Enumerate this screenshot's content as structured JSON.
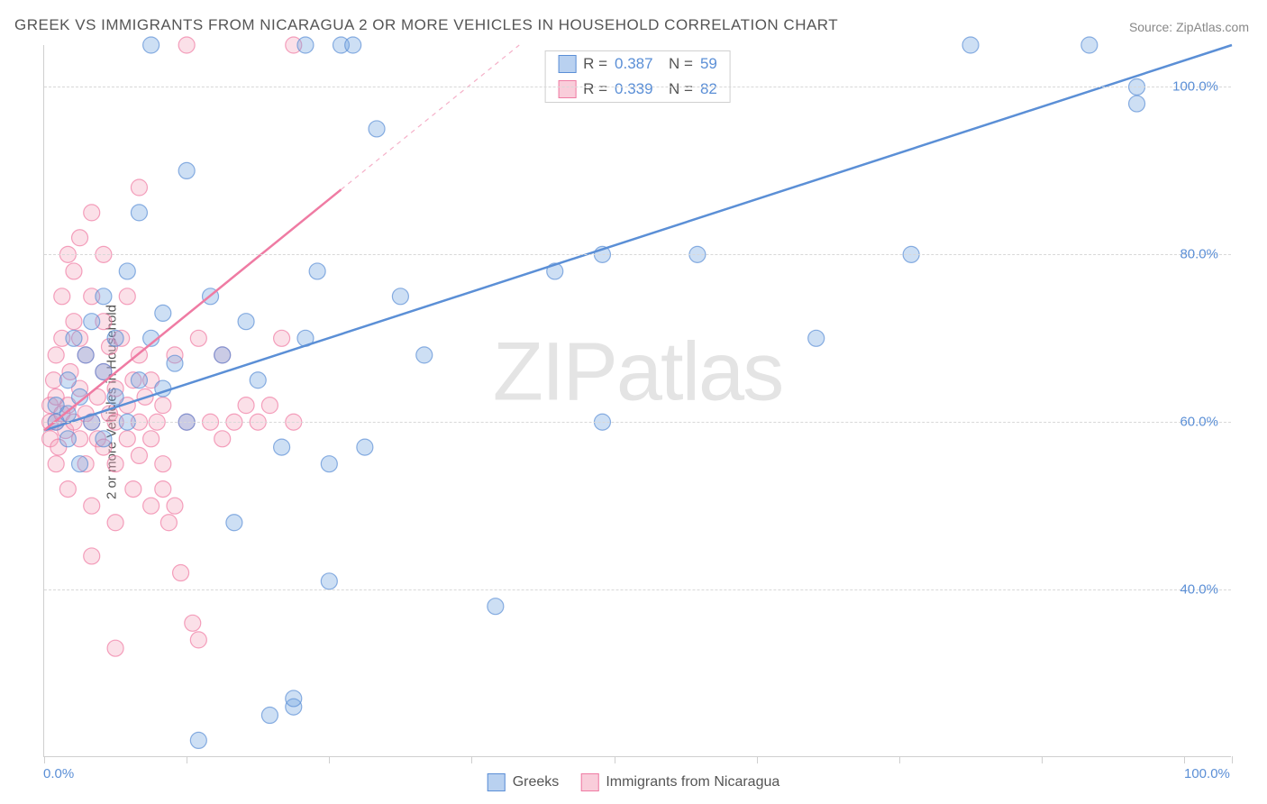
{
  "title": "GREEK VS IMMIGRANTS FROM NICARAGUA 2 OR MORE VEHICLES IN HOUSEHOLD CORRELATION CHART",
  "source": "Source: ZipAtlas.com",
  "y_axis_label": "2 or more Vehicles in Household",
  "watermark_zip": "ZIP",
  "watermark_atlas": "atlas",
  "chart": {
    "type": "scatter",
    "background_color": "#ffffff",
    "grid_color": "#d8d8d8",
    "axis_color": "#cfcfcf",
    "tick_label_color": "#5b8fd6",
    "text_color": "#555555",
    "title_fontsize": 17,
    "label_fontsize": 15,
    "marker_radius": 9,
    "marker_fill_opacity": 0.35,
    "line_width": 2.5,
    "xlim": [
      0,
      100
    ],
    "ylim": [
      20,
      105
    ],
    "y_ticks": [
      40,
      60,
      80,
      100
    ],
    "y_tick_labels": [
      "40.0%",
      "60.0%",
      "80.0%",
      "100.0%"
    ],
    "x_ticks": [
      0,
      12,
      24,
      36,
      48,
      60,
      72,
      84,
      96,
      100
    ],
    "x_tick_labels": {
      "0": "0.0%",
      "100": "100.0%"
    },
    "series": [
      {
        "name": "Greeks",
        "color": "#6fa3e0",
        "stroke": "#5b8fd6",
        "r_value": "0.387",
        "n_value": "59",
        "regression": {
          "x1": 0,
          "y1": 59,
          "x2": 100,
          "y2": 105,
          "solid_until_x": 100
        },
        "points": [
          [
            1,
            60
          ],
          [
            1,
            62
          ],
          [
            2,
            58
          ],
          [
            2,
            65
          ],
          [
            2,
            61
          ],
          [
            2.5,
            70
          ],
          [
            3,
            63
          ],
          [
            3,
            55
          ],
          [
            3.5,
            68
          ],
          [
            4,
            60
          ],
          [
            4,
            72
          ],
          [
            5,
            66
          ],
          [
            5,
            75
          ],
          [
            5,
            58
          ],
          [
            6,
            70
          ],
          [
            6,
            63
          ],
          [
            7,
            78
          ],
          [
            7,
            60
          ],
          [
            8,
            65
          ],
          [
            8,
            85
          ],
          [
            9,
            70
          ],
          [
            9,
            105
          ],
          [
            10,
            73
          ],
          [
            10,
            64
          ],
          [
            11,
            67
          ],
          [
            12,
            90
          ],
          [
            12,
            60
          ],
          [
            13,
            22
          ],
          [
            14,
            75
          ],
          [
            15,
            68
          ],
          [
            16,
            48
          ],
          [
            17,
            72
          ],
          [
            18,
            65
          ],
          [
            19,
            25
          ],
          [
            20,
            57
          ],
          [
            21,
            26
          ],
          [
            21,
            27
          ],
          [
            22,
            70
          ],
          [
            23,
            78
          ],
          [
            24,
            55
          ],
          [
            24,
            41
          ],
          [
            25,
            105
          ],
          [
            26,
            105
          ],
          [
            27,
            57
          ],
          [
            28,
            95
          ],
          [
            30,
            75
          ],
          [
            32,
            68
          ],
          [
            38,
            38
          ],
          [
            43,
            78
          ],
          [
            47,
            60
          ],
          [
            47,
            80
          ],
          [
            55,
            80
          ],
          [
            65,
            70
          ],
          [
            73,
            80
          ],
          [
            78,
            105
          ],
          [
            88,
            105
          ],
          [
            92,
            98
          ],
          [
            92,
            100
          ],
          [
            22,
            105
          ]
        ]
      },
      {
        "name": "Immigrants from Nicaragua",
        "color": "#f3a6bd",
        "stroke": "#ef7ba3",
        "r_value": "0.339",
        "n_value": "82",
        "regression": {
          "x1": 0,
          "y1": 59,
          "x2": 40,
          "y2": 105,
          "solid_until_x": 25
        },
        "points": [
          [
            0.5,
            60
          ],
          [
            0.5,
            58
          ],
          [
            0.5,
            62
          ],
          [
            0.8,
            65
          ],
          [
            1,
            55
          ],
          [
            1,
            60
          ],
          [
            1,
            63
          ],
          [
            1,
            68
          ],
          [
            1.2,
            57
          ],
          [
            1.5,
            61
          ],
          [
            1.5,
            70
          ],
          [
            1.5,
            75
          ],
          [
            1.8,
            59
          ],
          [
            2,
            62
          ],
          [
            2,
            80
          ],
          [
            2,
            52
          ],
          [
            2.2,
            66
          ],
          [
            2.5,
            60
          ],
          [
            2.5,
            72
          ],
          [
            2.5,
            78
          ],
          [
            3,
            58
          ],
          [
            3,
            64
          ],
          [
            3,
            70
          ],
          [
            3,
            82
          ],
          [
            3.5,
            55
          ],
          [
            3.5,
            61
          ],
          [
            3.5,
            68
          ],
          [
            4,
            60
          ],
          [
            4,
            75
          ],
          [
            4,
            50
          ],
          [
            4,
            85
          ],
          [
            4.5,
            63
          ],
          [
            4.5,
            58
          ],
          [
            5,
            66
          ],
          [
            5,
            72
          ],
          [
            5,
            80
          ],
          [
            5,
            57
          ],
          [
            5.5,
            61
          ],
          [
            5.5,
            69
          ],
          [
            6,
            64
          ],
          [
            6,
            60
          ],
          [
            6,
            55
          ],
          [
            6,
            48
          ],
          [
            6.5,
            70
          ],
          [
            7,
            62
          ],
          [
            7,
            58
          ],
          [
            7,
            75
          ],
          [
            7.5,
            65
          ],
          [
            7.5,
            52
          ],
          [
            8,
            60
          ],
          [
            8,
            68
          ],
          [
            8,
            56
          ],
          [
            8,
            88
          ],
          [
            8.5,
            63
          ],
          [
            9,
            58
          ],
          [
            9,
            50
          ],
          [
            9,
            65
          ],
          [
            9.5,
            60
          ],
          [
            10,
            52
          ],
          [
            10,
            55
          ],
          [
            10,
            62
          ],
          [
            10.5,
            48
          ],
          [
            11,
            50
          ],
          [
            11,
            68
          ],
          [
            11.5,
            42
          ],
          [
            12,
            60
          ],
          [
            12,
            105
          ],
          [
            12.5,
            36
          ],
          [
            13,
            70
          ],
          [
            13,
            34
          ],
          [
            14,
            60
          ],
          [
            15,
            68
          ],
          [
            15,
            58
          ],
          [
            16,
            60
          ],
          [
            17,
            62
          ],
          [
            18,
            60
          ],
          [
            19,
            62
          ],
          [
            20,
            70
          ],
          [
            21,
            60
          ],
          [
            21,
            105
          ],
          [
            6,
            33
          ],
          [
            4,
            44
          ]
        ]
      }
    ],
    "bottom_legend": [
      {
        "label": "Greeks",
        "fill": "#b9d1f0",
        "stroke": "#5b8fd6"
      },
      {
        "label": "Immigrants from Nicaragua",
        "fill": "#f9cdda",
        "stroke": "#ef7ba3"
      }
    ]
  }
}
